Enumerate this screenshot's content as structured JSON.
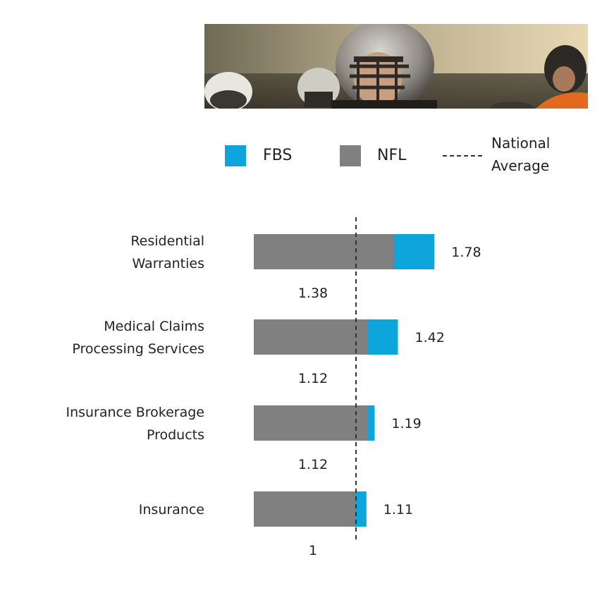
{
  "legend": {
    "fbs_label": "FBS",
    "nfl_label": "NFL",
    "avg_label_line1": "National",
    "avg_label_line2": "Average"
  },
  "colors": {
    "fbs": "#0ea5dd",
    "nfl": "#808080",
    "average_line": "#333333"
  },
  "banner": {
    "icon": "football-players-photo"
  },
  "chart_data": {
    "type": "bar",
    "orientation": "horizontal",
    "categories": [
      [
        "Residential",
        "Warranties"
      ],
      [
        "Medical Claims",
        "Processing Services"
      ],
      [
        "Insurance Brokerage",
        "Products"
      ],
      [
        "Insurance"
      ]
    ],
    "series": [
      {
        "name": "NFL",
        "values": [
          1.38,
          1.12,
          1.12,
          1
        ],
        "labels": [
          "1.38",
          "1.12",
          "1.12",
          "1"
        ]
      },
      {
        "name": "FBS",
        "values": [
          1.78,
          1.42,
          1.19,
          1.11
        ],
        "labels": [
          "1.78",
          "1.42",
          "1.19",
          "1.11"
        ]
      }
    ],
    "reference_line": {
      "name": "National Average",
      "value": 1,
      "style": "dashed"
    },
    "xlim": [
      0,
      1.78
    ],
    "legend_position": "top",
    "grid": false
  }
}
